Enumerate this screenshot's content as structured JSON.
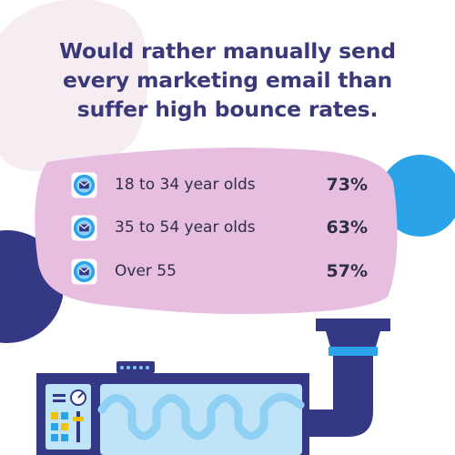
{
  "title_lines": [
    "Would rather manually send",
    "every marketing email than",
    "suffer high bounce rates."
  ],
  "colors": {
    "title": "#3a3a7a",
    "panel": "#e7bde0",
    "blob_left": "#f6edf3",
    "accent_blue": "#2aa3e8",
    "navy": "#343885",
    "text": "#2e2e4a"
  },
  "icons": [
    "envelope-icon",
    "envelope-icon",
    "envelope-icon"
  ],
  "chart_data": {
    "type": "table",
    "title": "Would rather manually send every marketing email than suffer high bounce rates.",
    "categories": [
      "18 to 34 year olds",
      "35 to 54 year olds",
      "Over 55"
    ],
    "values_display": [
      "73%",
      "63%",
      "57%"
    ],
    "values": [
      73,
      63,
      57
    ],
    "unit": "%"
  }
}
